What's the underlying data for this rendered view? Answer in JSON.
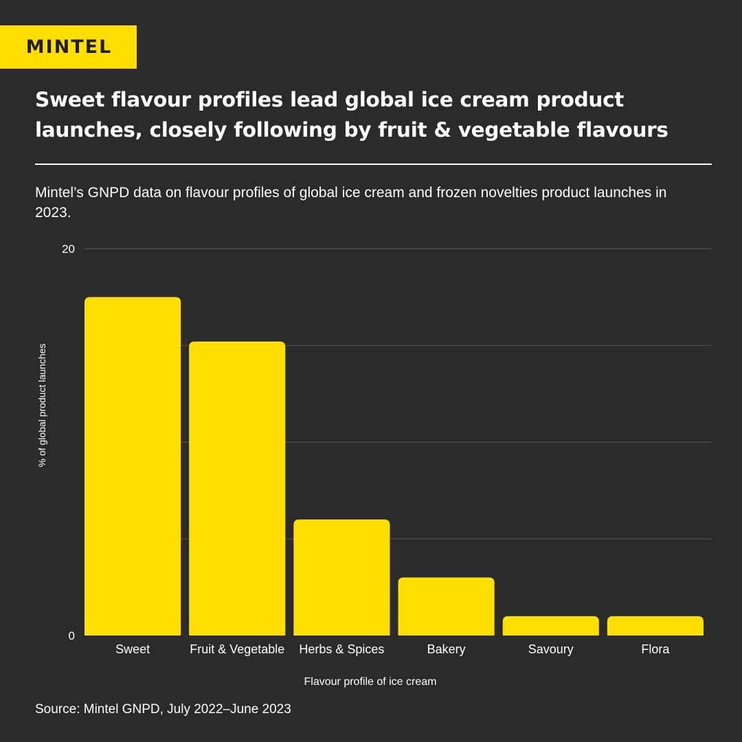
{
  "brand": {
    "logo_text": "MINTEL",
    "accent_color": "#ffde00",
    "background_color": "#2a2a2a"
  },
  "title": "Sweet flavour profiles lead global ice cream product launches, closely following by fruit & vegetable flavours",
  "subtitle": "Mintel’s GNPD data on flavour profiles of global ice cream and frozen novelties product launches in 2023.",
  "source": "Source: Mintel GNPD, July 2022–June 2023",
  "chart_data": {
    "type": "bar",
    "categories": [
      "Sweet",
      "Fruit & Vegetable",
      "Herbs & Spices",
      "Bakery",
      "Savoury",
      "Flora"
    ],
    "values": [
      17.5,
      15.2,
      6.0,
      3.0,
      1.0,
      1.0
    ],
    "xlabel": "Flavour profile of ice cream",
    "ylabel": "% of global product launches",
    "ylim": [
      0,
      20
    ],
    "yticks": [
      0,
      5,
      10,
      15,
      20
    ],
    "ytick_labels": [
      "0",
      "",
      "",
      "",
      "20"
    ],
    "grid": true,
    "legend": "none",
    "bar_color": "#ffde00",
    "grid_color": "#5a5a5a"
  }
}
